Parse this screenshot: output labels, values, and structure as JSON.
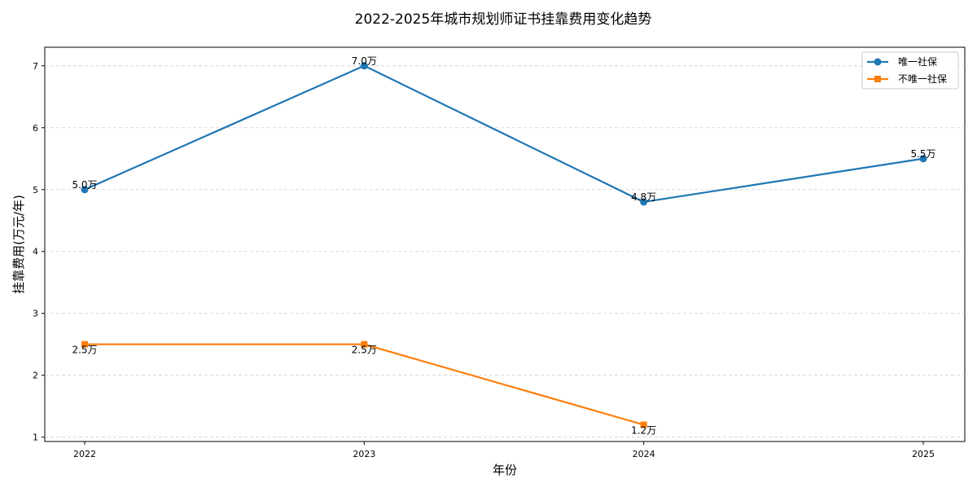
{
  "chart_data": {
    "type": "line",
    "title": "2022-2025年城市规划师证书挂靠费用变化趋势",
    "xlabel": "年份",
    "ylabel": "挂靠费用(万元/年)",
    "categories": [
      "2022",
      "2023",
      "2024",
      "2025"
    ],
    "ylim": [
      0.93,
      7.3
    ],
    "yticks": [
      1,
      2,
      3,
      4,
      5,
      6,
      7
    ],
    "grid": true,
    "legend_position": "top-right",
    "series": [
      {
        "name": "唯一社保",
        "color": "#1f77b4",
        "marker": "circle",
        "values": [
          5.0,
          7.0,
          4.8,
          5.5
        ],
        "labels": [
          "5.0万",
          "7.0万",
          "4.8万",
          "5.5万"
        ],
        "label_position": "above"
      },
      {
        "name": "不唯一社保",
        "color": "#ff7f0e",
        "marker": "square",
        "values": [
          2.5,
          2.5,
          1.2,
          null
        ],
        "labels": [
          "2.5万",
          "2.5万",
          "1.2万",
          null
        ],
        "label_position": "below"
      }
    ]
  }
}
